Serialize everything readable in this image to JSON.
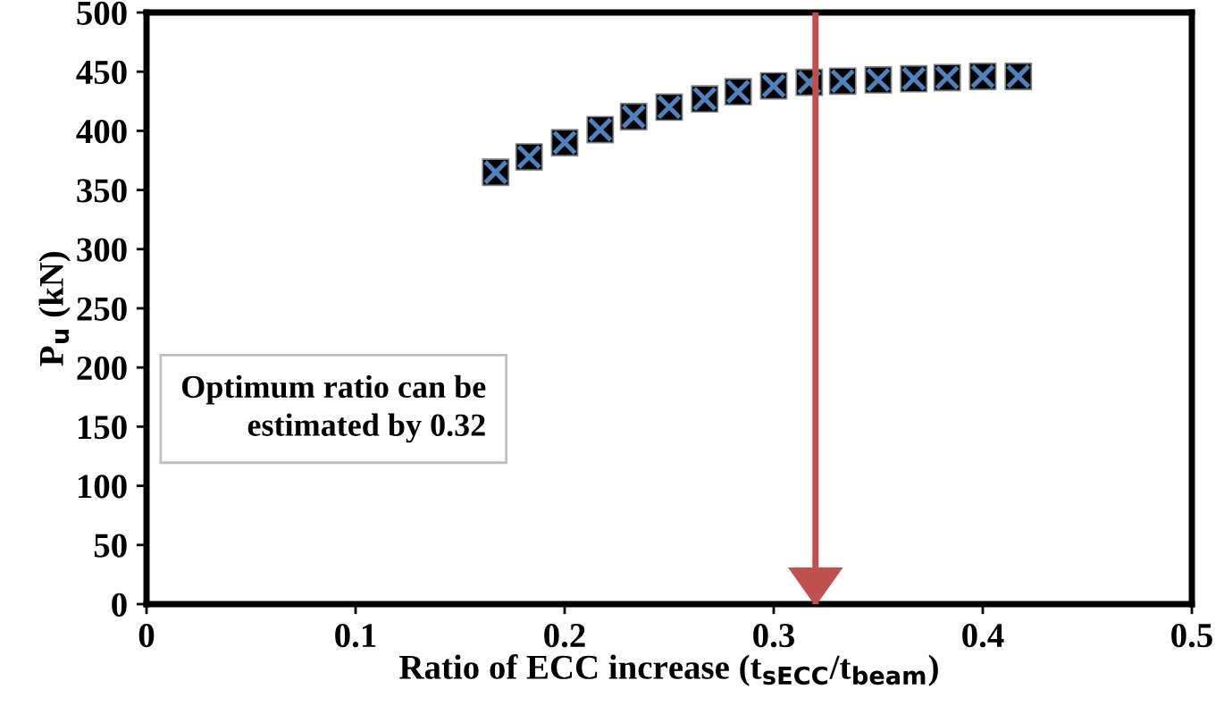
{
  "chart_data": {
    "type": "scatter",
    "xlabel": "Ratio of ECC increase (t$_{sECC}$/t$_{beam}$)",
    "ylabel": "P$_{u}$ (kN)",
    "x": [
      0.167,
      0.183,
      0.2,
      0.217,
      0.233,
      0.25,
      0.267,
      0.283,
      0.3,
      0.317,
      0.333,
      0.35,
      0.367,
      0.383,
      0.4,
      0.417
    ],
    "series": [
      {
        "color": "#000000",
        "values": [
          365,
          378,
          390,
          401,
          412,
          420,
          427,
          433,
          438,
          441,
          442,
          443,
          444,
          445,
          446,
          446
        ]
      }
    ],
    "marker": "square",
    "xlim": [
      0,
      0.5
    ],
    "xticks": [
      0,
      0.1,
      0.2,
      0.3,
      0.4,
      0.5
    ],
    "ylim": [
      0,
      500
    ],
    "yticks": [
      0,
      50,
      100,
      150,
      200,
      250,
      300,
      350,
      400,
      450,
      500
    ],
    "grid": false,
    "ref_lines": [
      {
        "axis": "x",
        "value": 0.32,
        "color": "#c0504d"
      }
    ],
    "annotations": [
      "Optimum ratio can be\nestimated by 0.32"
    ]
  }
}
